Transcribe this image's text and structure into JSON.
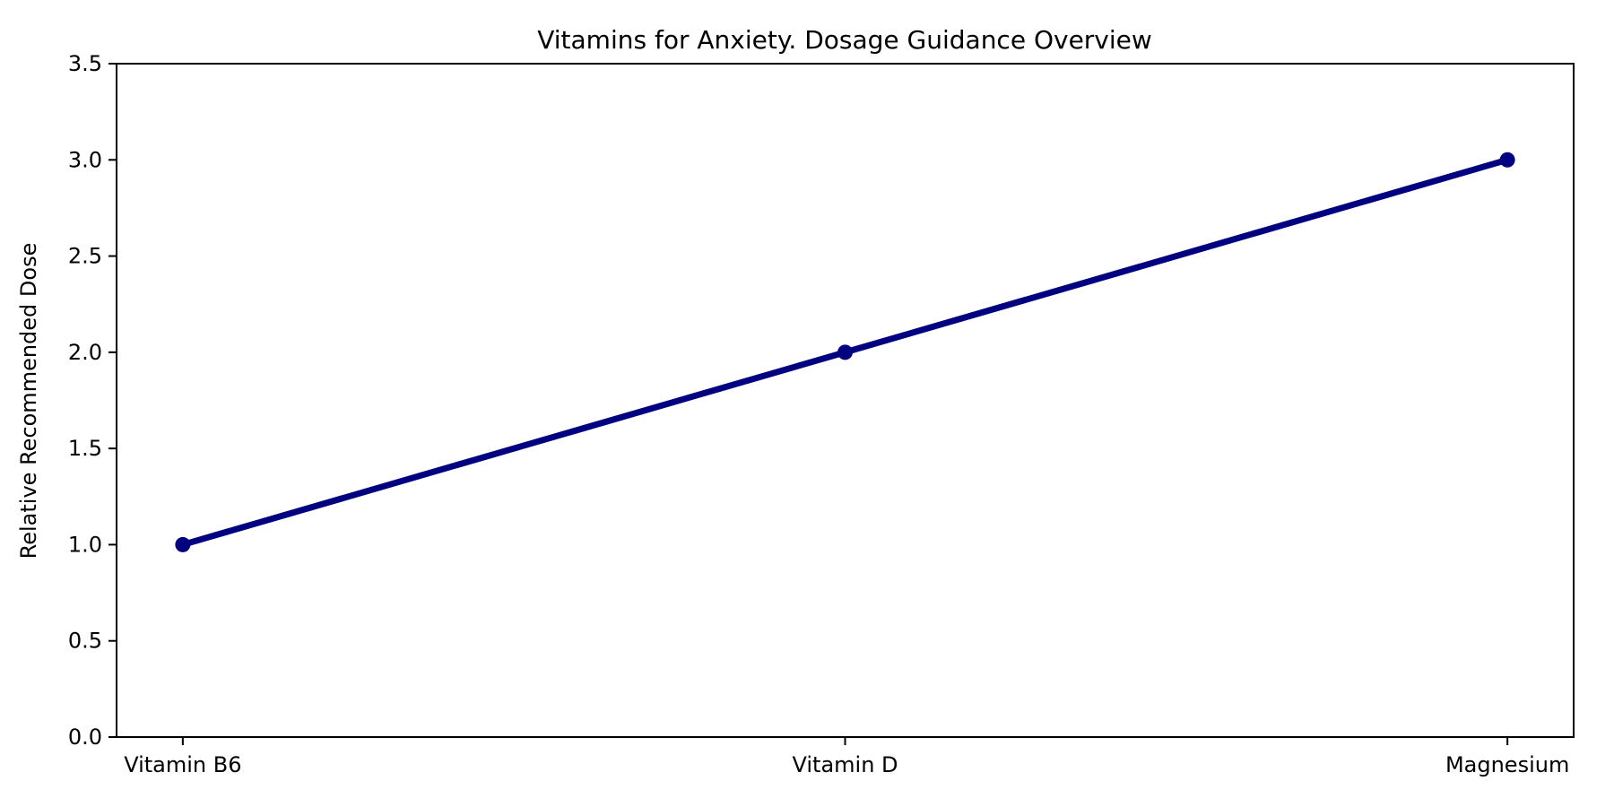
{
  "chart_data": {
    "type": "line",
    "title": "Vitamins for Anxiety. Dosage Guidance Overview",
    "xlabel": "",
    "ylabel": "Relative Recommended Dose",
    "categories": [
      "Vitamin B6",
      "Vitamin D",
      "Magnesium"
    ],
    "series": [
      {
        "name": "Relative Recommended Dose",
        "values": [
          1.0,
          2.0,
          3.0
        ]
      }
    ],
    "ylim": [
      0.0,
      3.5
    ],
    "yticks": [
      0.0,
      0.5,
      1.0,
      1.5,
      2.0,
      2.5,
      3.0,
      3.5
    ],
    "ytick_labels": [
      "0.0",
      "0.5",
      "1.0",
      "1.5",
      "2.0",
      "2.5",
      "3.0",
      "3.5"
    ],
    "grid": false,
    "legend_position": "none",
    "colors": {
      "line": "#000080",
      "marker": "#000080",
      "spine": "#000000",
      "background": "#ffffff",
      "text": "#000000"
    },
    "marker_style": "circle"
  }
}
